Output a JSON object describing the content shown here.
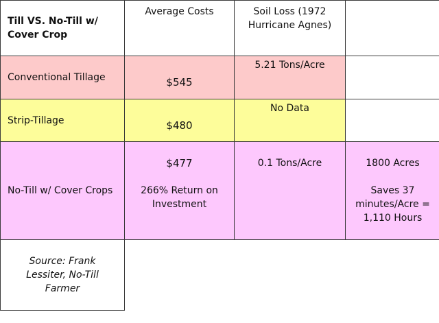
{
  "colors": {
    "conventional_row": "#fdcaca",
    "strip_row": "#fdfd9a",
    "notill_row": "#fdc8fd",
    "header_row": "#ffffff",
    "border": "#3a3a3a"
  },
  "header": {
    "col1": "Till VS. No-Till w/ Cover Crop",
    "col2": "Average Costs",
    "col3_line1": "Soil Loss (1972",
    "col3_line2": "Hurricane Agnes)",
    "col4": ""
  },
  "rows": [
    {
      "label": "Conventional Tillage",
      "cost": "$545",
      "soil_loss": "5.21 Tons/Acre",
      "extra": ""
    },
    {
      "label": "Strip-Tillage",
      "cost": "$480",
      "soil_loss": "No Data",
      "extra": ""
    },
    {
      "label": "No-Till w/ Cover Crops",
      "cost": "$477",
      "return_line1": "266% Return on",
      "return_line2": "Investment",
      "soil_loss": "0.1 Tons/Acre",
      "extra_line1": "1800 Acres",
      "extra_line2": "Saves 37",
      "extra_line3": "minutes/Acre =",
      "extra_line4": "1,110 Hours"
    }
  ],
  "source": {
    "line1": "Source: Frank",
    "line2": "Lessiter, No-Till",
    "line3": "Farmer"
  }
}
